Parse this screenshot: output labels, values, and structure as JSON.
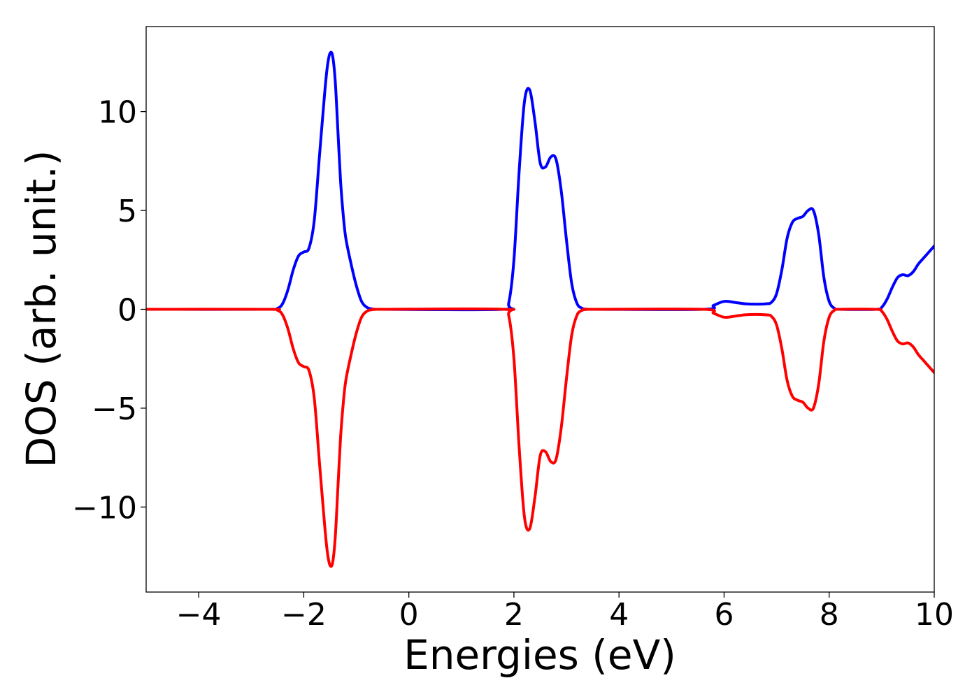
{
  "chart_data": {
    "type": "line",
    "title": "",
    "xlabel": "Energies (eV)",
    "ylabel": "DOS (arb. unit.)",
    "xlim": [
      -5,
      10
    ],
    "ylim": [
      -14.3,
      14.3
    ],
    "xticks": [
      -4,
      -2,
      0,
      2,
      4,
      6,
      8,
      10
    ],
    "xtick_labels": [
      "−4",
      "−2",
      "0",
      "2",
      "4",
      "6",
      "8",
      "10"
    ],
    "yticks": [
      -10,
      -5,
      0,
      5,
      10
    ],
    "ytick_labels": [
      "−10",
      "−5",
      "0",
      "5",
      "10"
    ],
    "grid": false,
    "legend": "none",
    "series": [
      {
        "color": "#0000ff",
        "x": [
          -5,
          -2.7,
          -2.5,
          -2.4,
          -2.3,
          -2.2,
          -2.1,
          -2.0,
          -1.9,
          -1.8,
          -1.7,
          -1.6,
          -1.55,
          -1.5,
          -1.45,
          -1.4,
          -1.35,
          -1.3,
          -1.25,
          -1.2,
          -1.1,
          -1.0,
          -0.9,
          -0.8,
          -0.7,
          -0.6,
          -0.5,
          1.8,
          1.9,
          2.0,
          2.1,
          2.2,
          2.3,
          2.4,
          2.5,
          2.6,
          2.7,
          2.8,
          2.9,
          3.0,
          3.1,
          3.2,
          3.3,
          3.4,
          3.5,
          5.6,
          5.8,
          6.0,
          6.2,
          6.4,
          6.6,
          6.8,
          6.9,
          7.0,
          7.1,
          7.2,
          7.3,
          7.4,
          7.5,
          7.6,
          7.7,
          7.8,
          7.9,
          8.0,
          8.1,
          8.2,
          8.9,
          9.0,
          9.1,
          9.2,
          9.3,
          9.4,
          9.5,
          9.6,
          9.7,
          9.8,
          9.9,
          10.0
        ],
        "y": [
          0,
          0,
          0.05,
          0.3,
          1.0,
          2.0,
          2.7,
          2.9,
          3.1,
          4.5,
          7.8,
          11.0,
          12.3,
          12.95,
          12.8,
          11.5,
          9.0,
          6.5,
          4.8,
          3.6,
          2.3,
          1.2,
          0.4,
          0.1,
          0.02,
          0,
          0,
          0,
          0.3,
          2.5,
          7.0,
          10.5,
          11.1,
          9.5,
          7.4,
          7.2,
          7.7,
          7.6,
          6.0,
          3.5,
          1.3,
          0.3,
          0.05,
          0,
          0,
          0,
          0.2,
          0.4,
          0.35,
          0.28,
          0.26,
          0.28,
          0.35,
          0.8,
          2.0,
          3.6,
          4.4,
          4.6,
          4.7,
          5.0,
          5.0,
          3.8,
          1.6,
          0.4,
          0.05,
          0,
          0,
          0.1,
          0.5,
          1.1,
          1.6,
          1.75,
          1.7,
          1.9,
          2.3,
          2.6,
          2.9,
          3.2
        ]
      },
      {
        "color": "#ff0000",
        "x": [
          -5,
          -2.7,
          -2.5,
          -2.4,
          -2.3,
          -2.2,
          -2.1,
          -2.0,
          -1.9,
          -1.8,
          -1.7,
          -1.6,
          -1.55,
          -1.5,
          -1.45,
          -1.4,
          -1.35,
          -1.3,
          -1.25,
          -1.2,
          -1.1,
          -1.0,
          -0.9,
          -0.8,
          -0.7,
          -0.6,
          -0.5,
          1.8,
          1.9,
          2.0,
          2.1,
          2.2,
          2.3,
          2.4,
          2.5,
          2.6,
          2.7,
          2.8,
          2.9,
          3.0,
          3.1,
          3.2,
          3.3,
          3.4,
          3.5,
          5.6,
          5.8,
          6.0,
          6.2,
          6.4,
          6.6,
          6.8,
          6.9,
          7.0,
          7.1,
          7.2,
          7.3,
          7.4,
          7.5,
          7.6,
          7.7,
          7.8,
          7.9,
          8.0,
          8.1,
          8.2,
          8.9,
          9.0,
          9.1,
          9.2,
          9.3,
          9.4,
          9.5,
          9.6,
          9.7,
          9.8,
          9.9,
          10.0
        ],
        "y": [
          0,
          0,
          -0.05,
          -0.3,
          -1.0,
          -2.0,
          -2.7,
          -2.9,
          -3.1,
          -4.5,
          -7.8,
          -11.0,
          -12.3,
          -12.95,
          -12.8,
          -11.5,
          -9.0,
          -6.5,
          -4.8,
          -3.6,
          -2.3,
          -1.2,
          -0.4,
          -0.1,
          -0.02,
          0,
          0,
          0,
          -0.3,
          -2.5,
          -7.0,
          -10.5,
          -11.1,
          -9.5,
          -7.4,
          -7.2,
          -7.7,
          -7.6,
          -6.0,
          -3.5,
          -1.3,
          -0.3,
          -0.05,
          0,
          0,
          0,
          -0.2,
          -0.4,
          -0.35,
          -0.28,
          -0.26,
          -0.28,
          -0.35,
          -0.8,
          -2.0,
          -3.6,
          -4.4,
          -4.6,
          -4.7,
          -5.0,
          -5.0,
          -3.8,
          -1.6,
          -0.4,
          -0.05,
          0,
          0,
          -0.1,
          -0.5,
          -1.1,
          -1.6,
          -1.75,
          -1.7,
          -1.9,
          -2.3,
          -2.6,
          -2.9,
          -3.2
        ]
      }
    ]
  }
}
